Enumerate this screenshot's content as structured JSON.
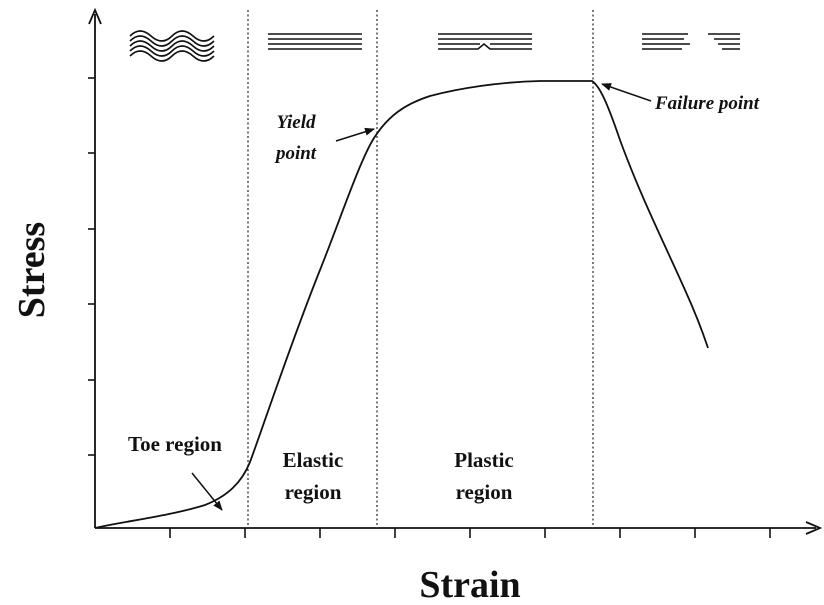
{
  "axes": {
    "x_label": "Strain",
    "y_label": "Stress"
  },
  "regions": [
    {
      "label": "Toe region"
    },
    {
      "lines": [
        "Elastic",
        "region"
      ]
    },
    {
      "lines": [
        "Plastic",
        "region"
      ]
    }
  ],
  "annotations": [
    {
      "lines": [
        "Yield",
        "point"
      ]
    },
    {
      "label": "Failure point"
    }
  ]
}
